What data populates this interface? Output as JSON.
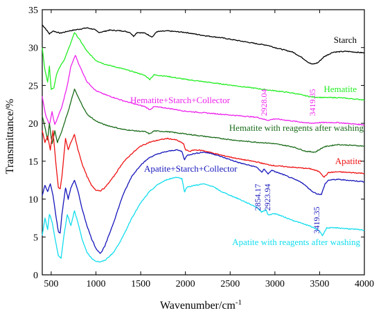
{
  "chart_data": {
    "type": "line",
    "xlabel": "Wavenumber/cm",
    "xlabel_sup": "-1",
    "ylabel": "Transmittance/%",
    "xlim": [
      400,
      4000
    ],
    "ylim": [
      0,
      35
    ],
    "xticks": [
      500,
      1000,
      1500,
      2000,
      2500,
      3000,
      3500,
      4000
    ],
    "yticks": [
      0,
      5,
      10,
      15,
      20,
      25,
      30,
      35
    ],
    "grid": false,
    "legend": "inline labels beside each curve",
    "series": [
      {
        "name": "Starch",
        "color": "#000000",
        "points": [
          [
            400,
            33.0
          ],
          [
            430,
            32.6
          ],
          [
            480,
            31.8
          ],
          [
            520,
            32.2
          ],
          [
            600,
            31.9
          ],
          [
            700,
            32.2
          ],
          [
            800,
            32.4
          ],
          [
            900,
            32.6
          ],
          [
            980,
            32.4
          ],
          [
            1030,
            32.0
          ],
          [
            1080,
            32.1
          ],
          [
            1150,
            32.3
          ],
          [
            1300,
            32.2
          ],
          [
            1380,
            32.0
          ],
          [
            1420,
            31.5
          ],
          [
            1460,
            32.0
          ],
          [
            1550,
            31.9
          ],
          [
            1630,
            31.4
          ],
          [
            1680,
            32.1
          ],
          [
            1800,
            32.2
          ],
          [
            2000,
            32.0
          ],
          [
            2200,
            31.6
          ],
          [
            2400,
            31.3
          ],
          [
            2600,
            30.9
          ],
          [
            2800,
            30.5
          ],
          [
            2920,
            30.3
          ],
          [
            3000,
            30.0
          ],
          [
            3100,
            29.7
          ],
          [
            3200,
            29.4
          ],
          [
            3300,
            28.7
          ],
          [
            3380,
            28.0
          ],
          [
            3420,
            27.8
          ],
          [
            3480,
            28.0
          ],
          [
            3550,
            28.8
          ],
          [
            3650,
            29.4
          ],
          [
            3800,
            29.5
          ],
          [
            4000,
            29.3
          ]
        ]
      },
      {
        "name": "Hematite",
        "color": "#22ee22",
        "points": [
          [
            400,
            30.0
          ],
          [
            430,
            27.0
          ],
          [
            460,
            25.5
          ],
          [
            480,
            27.5
          ],
          [
            500,
            24.5
          ],
          [
            530,
            24.7
          ],
          [
            560,
            26.5
          ],
          [
            600,
            27.5
          ],
          [
            650,
            28.5
          ],
          [
            700,
            30.0
          ],
          [
            760,
            32.0
          ],
          [
            820,
            31.0
          ],
          [
            900,
            29.5
          ],
          [
            1000,
            28.3
          ],
          [
            1100,
            27.8
          ],
          [
            1200,
            27.5
          ],
          [
            1300,
            27.2
          ],
          [
            1450,
            26.7
          ],
          [
            1550,
            26.3
          ],
          [
            1600,
            25.8
          ],
          [
            1650,
            26.4
          ],
          [
            1800,
            26.2
          ],
          [
            2000,
            25.8
          ],
          [
            2200,
            25.5
          ],
          [
            2400,
            25.2
          ],
          [
            2600,
            24.9
          ],
          [
            2800,
            24.6
          ],
          [
            2920,
            24.4
          ],
          [
            3000,
            24.3
          ],
          [
            3200,
            24.0
          ],
          [
            3400,
            23.5
          ],
          [
            3550,
            23.4
          ],
          [
            3700,
            23.4
          ],
          [
            4000,
            23.1
          ]
        ]
      },
      {
        "name": "Hematite+Starch+Collector",
        "color": "#ee22ee",
        "points": [
          [
            400,
            23.5
          ],
          [
            440,
            21.0
          ],
          [
            480,
            19.8
          ],
          [
            510,
            21.5
          ],
          [
            540,
            19.8
          ],
          [
            580,
            21.0
          ],
          [
            620,
            22.2
          ],
          [
            680,
            25.0
          ],
          [
            720,
            27.5
          ],
          [
            770,
            29.0
          ],
          [
            820,
            27.5
          ],
          [
            900,
            25.5
          ],
          [
            1000,
            24.3
          ],
          [
            1100,
            23.8
          ],
          [
            1200,
            23.4
          ],
          [
            1300,
            23.0
          ],
          [
            1450,
            22.5
          ],
          [
            1550,
            22.2
          ],
          [
            1600,
            21.8
          ],
          [
            1650,
            22.2
          ],
          [
            1800,
            22.0
          ],
          [
            2000,
            21.6
          ],
          [
            2200,
            21.4
          ],
          [
            2400,
            21.2
          ],
          [
            2600,
            21.0
          ],
          [
            2800,
            20.8
          ],
          [
            2920,
            20.4
          ],
          [
            3000,
            20.6
          ],
          [
            3200,
            20.3
          ],
          [
            3400,
            20.0
          ],
          [
            3500,
            20.1
          ],
          [
            3700,
            20.1
          ],
          [
            4000,
            19.8
          ]
        ]
      },
      {
        "name": "Hematite with reagents after washing",
        "color": "#1a6b1a",
        "points": [
          [
            400,
            21.0
          ],
          [
            430,
            19.5
          ],
          [
            460,
            17.8
          ],
          [
            480,
            20.0
          ],
          [
            510,
            17.3
          ],
          [
            540,
            19.0
          ],
          [
            570,
            17.5
          ],
          [
            620,
            19.0
          ],
          [
            700,
            22.0
          ],
          [
            760,
            24.5
          ],
          [
            820,
            23.0
          ],
          [
            900,
            21.2
          ],
          [
            1000,
            20.3
          ],
          [
            1100,
            19.8
          ],
          [
            1200,
            19.5
          ],
          [
            1300,
            19.2
          ],
          [
            1450,
            19.0
          ],
          [
            1550,
            18.9
          ],
          [
            1600,
            18.6
          ],
          [
            1650,
            19.0
          ],
          [
            1800,
            18.9
          ],
          [
            2000,
            18.6
          ],
          [
            2200,
            18.3
          ],
          [
            2400,
            18.0
          ],
          [
            2600,
            17.7
          ],
          [
            2800,
            17.5
          ],
          [
            2920,
            17.4
          ],
          [
            3000,
            17.3
          ],
          [
            3200,
            16.9
          ],
          [
            3350,
            16.3
          ],
          [
            3450,
            16.2
          ],
          [
            3550,
            16.9
          ],
          [
            3700,
            17.2
          ],
          [
            4000,
            17.0
          ]
        ]
      },
      {
        "name": "Apatite",
        "color": "#ee1111",
        "points": [
          [
            400,
            19.0
          ],
          [
            430,
            17.5
          ],
          [
            460,
            18.3
          ],
          [
            490,
            16.5
          ],
          [
            520,
            19.0
          ],
          [
            550,
            15.0
          ],
          [
            580,
            11.5
          ],
          [
            600,
            11.3
          ],
          [
            620,
            13.0
          ],
          [
            660,
            18.0
          ],
          [
            690,
            16.5
          ],
          [
            720,
            17.5
          ],
          [
            760,
            18.5
          ],
          [
            800,
            16.5
          ],
          [
            850,
            14.5
          ],
          [
            900,
            13.0
          ],
          [
            950,
            11.8
          ],
          [
            1000,
            11.2
          ],
          [
            1050,
            11.1
          ],
          [
            1100,
            11.5
          ],
          [
            1200,
            13.0
          ],
          [
            1300,
            14.8
          ],
          [
            1400,
            16.0
          ],
          [
            1500,
            17.0
          ],
          [
            1600,
            17.5
          ],
          [
            1700,
            17.8
          ],
          [
            1800,
            18.0
          ],
          [
            1900,
            17.8
          ],
          [
            1980,
            17.3
          ],
          [
            2000,
            16.5
          ],
          [
            2050,
            16.3
          ],
          [
            2100,
            16.5
          ],
          [
            2200,
            16.4
          ],
          [
            2400,
            15.8
          ],
          [
            2600,
            15.3
          ],
          [
            2800,
            14.9
          ],
          [
            2900,
            14.6
          ],
          [
            3000,
            14.4
          ],
          [
            3200,
            14.2
          ],
          [
            3400,
            14.0
          ],
          [
            3500,
            13.6
          ],
          [
            3550,
            12.9
          ],
          [
            3600,
            13.5
          ],
          [
            3700,
            13.6
          ],
          [
            4000,
            13.4
          ]
        ]
      },
      {
        "name": "Apatite+Starch+Collector",
        "color": "#1515bb",
        "points": [
          [
            400,
            10.5
          ],
          [
            430,
            11.8
          ],
          [
            460,
            11.0
          ],
          [
            490,
            12.0
          ],
          [
            520,
            10.5
          ],
          [
            550,
            8.0
          ],
          [
            580,
            5.7
          ],
          [
            600,
            5.5
          ],
          [
            620,
            8.0
          ],
          [
            660,
            11.5
          ],
          [
            690,
            10.0
          ],
          [
            720,
            11.5
          ],
          [
            760,
            12.5
          ],
          [
            800,
            11.0
          ],
          [
            850,
            8.5
          ],
          [
            900,
            6.5
          ],
          [
            950,
            4.8
          ],
          [
            1000,
            3.5
          ],
          [
            1050,
            2.8
          ],
          [
            1100,
            3.8
          ],
          [
            1200,
            7.0
          ],
          [
            1300,
            10.5
          ],
          [
            1400,
            13.0
          ],
          [
            1500,
            14.5
          ],
          [
            1600,
            15.5
          ],
          [
            1700,
            16.0
          ],
          [
            1800,
            16.3
          ],
          [
            1900,
            16.5
          ],
          [
            1960,
            16.3
          ],
          [
            1990,
            15.2
          ],
          [
            2020,
            15.8
          ],
          [
            2100,
            16.0
          ],
          [
            2200,
            16.2
          ],
          [
            2300,
            16.0
          ],
          [
            2400,
            15.6
          ],
          [
            2600,
            14.8
          ],
          [
            2800,
            14.2
          ],
          [
            2854,
            13.5
          ],
          [
            2880,
            14.0
          ],
          [
            2924,
            13.3
          ],
          [
            2960,
            13.8
          ],
          [
            3100,
            13.2
          ],
          [
            3300,
            12.2
          ],
          [
            3419,
            11.0
          ],
          [
            3470,
            10.7
          ],
          [
            3520,
            10.6
          ],
          [
            3560,
            12.0
          ],
          [
            3600,
            12.5
          ],
          [
            3700,
            12.6
          ],
          [
            4000,
            12.3
          ]
        ]
      },
      {
        "name": "Apatite with reagents after washing",
        "color": "#11ddee",
        "points": [
          [
            400,
            5.2
          ],
          [
            430,
            7.5
          ],
          [
            460,
            6.0
          ],
          [
            480,
            8.0
          ],
          [
            510,
            7.0
          ],
          [
            540,
            5.0
          ],
          [
            580,
            2.5
          ],
          [
            610,
            2.2
          ],
          [
            640,
            5.0
          ],
          [
            680,
            8.0
          ],
          [
            720,
            6.5
          ],
          [
            760,
            8.5
          ],
          [
            800,
            6.8
          ],
          [
            850,
            4.5
          ],
          [
            900,
            3.0
          ],
          [
            950,
            2.2
          ],
          [
            1000,
            1.8
          ],
          [
            1050,
            1.7
          ],
          [
            1100,
            1.9
          ],
          [
            1200,
            3.0
          ],
          [
            1300,
            5.0
          ],
          [
            1400,
            7.5
          ],
          [
            1500,
            9.5
          ],
          [
            1600,
            11.0
          ],
          [
            1700,
            12.0
          ],
          [
            1800,
            12.6
          ],
          [
            1900,
            12.9
          ],
          [
            1960,
            12.7
          ],
          [
            1990,
            11.0
          ],
          [
            2020,
            11.6
          ],
          [
            2100,
            11.8
          ],
          [
            2200,
            12.0
          ],
          [
            2300,
            11.7
          ],
          [
            2400,
            11.0
          ],
          [
            2600,
            10.0
          ],
          [
            2800,
            8.9
          ],
          [
            2850,
            8.3
          ],
          [
            2900,
            8.6
          ],
          [
            2924,
            7.9
          ],
          [
            3000,
            8.1
          ],
          [
            3200,
            7.2
          ],
          [
            3400,
            6.4
          ],
          [
            3500,
            5.8
          ],
          [
            3530,
            5.2
          ],
          [
            3580,
            6.2
          ],
          [
            3700,
            6.2
          ],
          [
            4000,
            5.9
          ]
        ]
      }
    ],
    "annotations": [
      {
        "text": "2928.04",
        "color": "#ee22ee"
      },
      {
        "text": "3419.35",
        "color": "#ee22ee"
      },
      {
        "text": "2854.17",
        "color": "#1515bb"
      },
      {
        "text": "2923.94",
        "color": "#1515bb"
      },
      {
        "text": "3419.35",
        "color": "#1515bb"
      }
    ]
  }
}
